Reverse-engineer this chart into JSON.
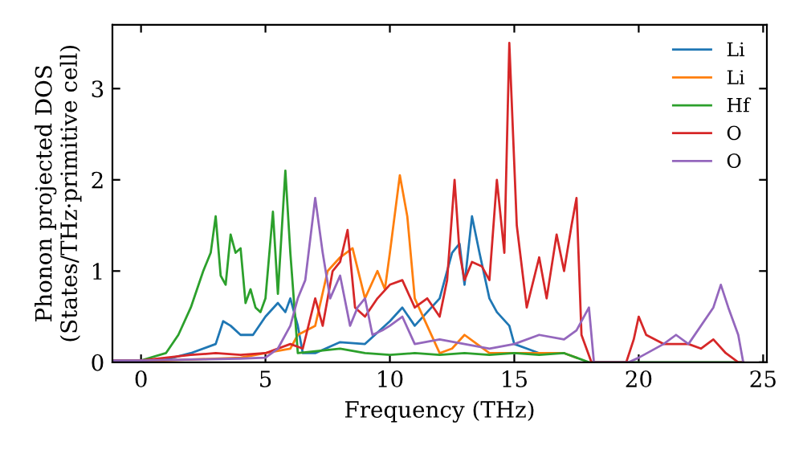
{
  "chart_data": {
    "type": "line",
    "xlabel": "Frequency (THz)",
    "ylabel": "Phonon projected DOS\n(States/THz·primitive cell)",
    "xlim": [
      -1.15,
      25.15
    ],
    "ylim": [
      0,
      3.7
    ],
    "xticks": [
      0,
      5,
      10,
      15,
      20,
      25
    ],
    "yticks": [
      0,
      1,
      2,
      3
    ],
    "grid": false,
    "legend": "top right",
    "marker": "none",
    "line_style": "solid",
    "series": [
      {
        "name": "Li",
        "color": "#1f77b4",
        "x": [
          -1.15,
          0,
          1,
          2,
          3,
          3.3,
          3.6,
          4,
          4.5,
          5,
          5.5,
          5.8,
          6,
          6.3,
          6.5,
          7,
          8,
          9,
          10,
          10.5,
          11,
          12,
          12.5,
          12.8,
          13,
          13.3,
          13.6,
          14,
          14.3,
          14.8,
          15,
          15.5,
          16,
          17
        ],
        "values": [
          0.02,
          0.02,
          0.03,
          0.1,
          0.2,
          0.45,
          0.4,
          0.3,
          0.3,
          0.5,
          0.65,
          0.55,
          0.7,
          0.4,
          0.1,
          0.1,
          0.22,
          0.2,
          0.45,
          0.6,
          0.4,
          0.7,
          1.2,
          1.3,
          0.85,
          1.6,
          1.2,
          0.7,
          0.55,
          0.4,
          0.2,
          0.15,
          0.1,
          0.1
        ]
      },
      {
        "name": "Li",
        "color": "#ff7f0e",
        "x": [
          -1.15,
          0,
          2,
          4,
          5,
          6,
          6.3,
          7,
          7.5,
          8,
          8.5,
          9,
          9.5,
          9.8,
          10,
          10.4,
          10.7,
          11,
          11.5,
          12,
          12.5,
          13,
          13.5,
          14,
          15,
          16,
          17,
          17.5
        ],
        "values": [
          0.01,
          0.01,
          0.03,
          0.05,
          0.1,
          0.15,
          0.3,
          0.4,
          1.0,
          1.15,
          1.25,
          0.7,
          1.0,
          0.8,
          1.2,
          2.05,
          1.6,
          0.7,
          0.4,
          0.1,
          0.15,
          0.3,
          0.2,
          0.1,
          0.1,
          0.1,
          0.1,
          0.05
        ]
      },
      {
        "name": "Hf",
        "color": "#2ca02c",
        "x": [
          -1.15,
          0,
          1,
          1.5,
          2,
          2.5,
          2.8,
          3.0,
          3.2,
          3.4,
          3.6,
          3.8,
          4.0,
          4.2,
          4.4,
          4.6,
          4.8,
          5.0,
          5.3,
          5.5,
          5.8,
          6.0,
          6.3,
          7,
          8,
          9,
          10,
          11,
          12,
          13,
          14,
          15,
          16,
          17,
          17.5,
          18,
          24.2
        ],
        "values": [
          0.02,
          0.02,
          0.1,
          0.3,
          0.6,
          1.0,
          1.2,
          1.6,
          0.95,
          0.85,
          1.4,
          1.2,
          1.25,
          0.65,
          0.8,
          0.6,
          0.55,
          0.7,
          1.65,
          0.75,
          2.1,
          1.2,
          0.1,
          0.12,
          0.15,
          0.1,
          0.08,
          0.1,
          0.08,
          0.1,
          0.08,
          0.1,
          0.08,
          0.1,
          0.05,
          0,
          0
        ]
      },
      {
        "name": "O",
        "color": "#d62728",
        "x": [
          -1.15,
          0,
          2,
          3,
          4,
          5,
          6,
          6.5,
          7,
          7.3,
          7.7,
          8,
          8.3,
          8.6,
          9,
          9.5,
          10,
          10.5,
          11,
          11.5,
          12,
          12.3,
          12.6,
          12.8,
          13,
          13.3,
          13.7,
          14,
          14.3,
          14.6,
          14.8,
          15.1,
          15.5,
          16,
          16.3,
          16.7,
          17,
          17.3,
          17.5,
          17.7,
          18.1,
          19.5,
          19.8,
          20,
          20.3,
          21,
          22,
          22.5,
          23,
          23.5,
          24,
          24.2
        ],
        "values": [
          0.02,
          0.02,
          0.08,
          0.1,
          0.08,
          0.1,
          0.2,
          0.15,
          0.7,
          0.4,
          1.0,
          1.1,
          1.45,
          0.6,
          0.5,
          0.7,
          0.85,
          0.9,
          0.6,
          0.7,
          0.5,
          0.9,
          2.0,
          1.2,
          0.9,
          1.1,
          1.05,
          0.9,
          2.0,
          1.2,
          3.5,
          1.5,
          0.6,
          1.15,
          0.7,
          1.4,
          1.0,
          1.5,
          1.8,
          0.3,
          0,
          0,
          0.25,
          0.5,
          0.3,
          0.2,
          0.2,
          0.15,
          0.25,
          0.1,
          0,
          0
        ]
      },
      {
        "name": "O",
        "color": "#9467bd",
        "x": [
          -1.15,
          0,
          2,
          4,
          5,
          5.5,
          6,
          6.3,
          6.6,
          7,
          7.3,
          7.6,
          8,
          8.4,
          8.7,
          9,
          9.3,
          9.7,
          10,
          10.5,
          11,
          12,
          13,
          14,
          15,
          16,
          17,
          17.5,
          18,
          18.2,
          19.6,
          20,
          21,
          21.5,
          22,
          23,
          23.3,
          23.6,
          24,
          24.2
        ],
        "values": [
          0.02,
          0.02,
          0.03,
          0.04,
          0.05,
          0.15,
          0.4,
          0.7,
          0.9,
          1.8,
          1.2,
          0.7,
          0.95,
          0.4,
          0.6,
          0.7,
          0.3,
          0.35,
          0.4,
          0.5,
          0.2,
          0.25,
          0.2,
          0.15,
          0.2,
          0.3,
          0.25,
          0.35,
          0.6,
          0,
          0,
          0.05,
          0.2,
          0.3,
          0.2,
          0.6,
          0.85,
          0.6,
          0.3,
          0
        ]
      }
    ]
  }
}
